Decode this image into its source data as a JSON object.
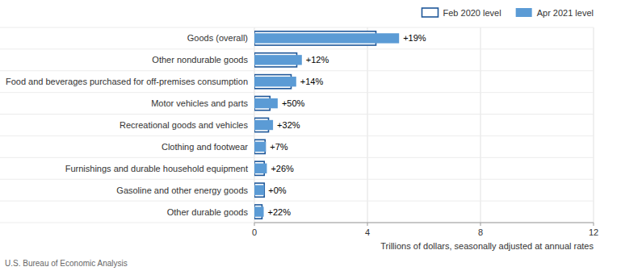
{
  "chart_data": {
    "type": "bar",
    "orientation": "horizontal",
    "categories": [
      "Goods (overall)",
      "Other nondurable goods",
      "Food and beverages purchased for off-premises consumption",
      "Motor vehicles and parts",
      "Recreational goods and vehicles",
      "Clothing and footwear",
      "Furnishings and durable household equipment",
      "Gasoline and other energy goods",
      "Other durable goods"
    ],
    "series": [
      {
        "name": "Feb 2020 level",
        "color": "#1e5799",
        "values": [
          4.3,
          1.5,
          1.3,
          0.55,
          0.5,
          0.38,
          0.35,
          0.35,
          0.27
        ]
      },
      {
        "name": "Apr 2021 level",
        "color": "#5b9bd5",
        "values": [
          5.12,
          1.68,
          1.48,
          0.825,
          0.66,
          0.407,
          0.441,
          0.35,
          0.33
        ]
      }
    ],
    "annotations": [
      "+19%",
      "+12%",
      "+14%",
      "+50%",
      "+32%",
      "+7%",
      "+26%",
      "+0%",
      "+22%"
    ],
    "xlabel": "Trillions of dollars, seasonally adjusted at annual rates",
    "xlim": [
      0,
      12
    ],
    "xticks": [
      0,
      4,
      8,
      12
    ],
    "grid": true,
    "legend": "top",
    "source": "U.S. Bureau of Economic Analysis"
  }
}
